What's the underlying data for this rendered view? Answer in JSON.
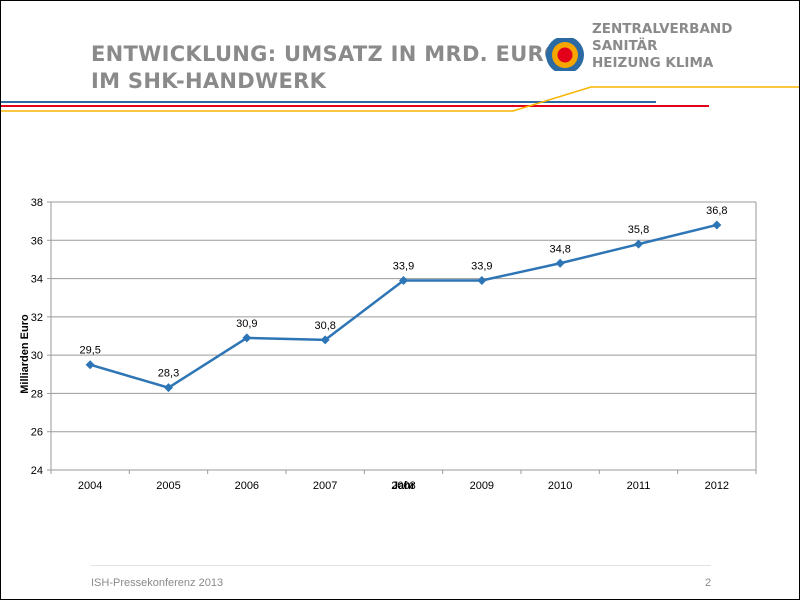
{
  "slide": {
    "title_line1": "ENTWICKLUNG: UMSATZ IN MRD. EURO",
    "title_line2": "IM SHK-HANDWERK",
    "footer_left": "ISH-Pressekonferenz 2013",
    "page_number": "2"
  },
  "logo": {
    "line1": "ZENTRALVERBAND",
    "line2": "SANITÄR",
    "line3": "HEIZUNG KLIMA",
    "colors": [
      "#e2001a",
      "#f7a600",
      "#2c6aa3"
    ]
  },
  "colors": {
    "series": "#2e75b6",
    "header_blue": "#2c6aa3",
    "header_red": "#e2001a",
    "header_yellow": "#f7b500",
    "title_gray": "#8a8a8a"
  },
  "chart_data": {
    "type": "line",
    "categories": [
      "2004",
      "2005",
      "2006",
      "2007",
      "2008",
      "2009",
      "2010",
      "2011",
      "2012"
    ],
    "series": [
      {
        "values": [
          29.5,
          28.3,
          30.9,
          30.8,
          33.9,
          33.9,
          34.8,
          35.8,
          36.8
        ]
      }
    ],
    "data_labels": [
      "29,5",
      "28,3",
      "30,9",
      "30,8",
      "33,9",
      "33,9",
      "34,8",
      "35,8",
      "36,8"
    ],
    "xlabel": "Jahr",
    "ylabel": "Milliarden Euro",
    "ylim": [
      24,
      38
    ],
    "yticks": [
      "24",
      "26",
      "28",
      "30",
      "32",
      "34",
      "36",
      "38"
    ],
    "grid": true,
    "legend": "none"
  }
}
